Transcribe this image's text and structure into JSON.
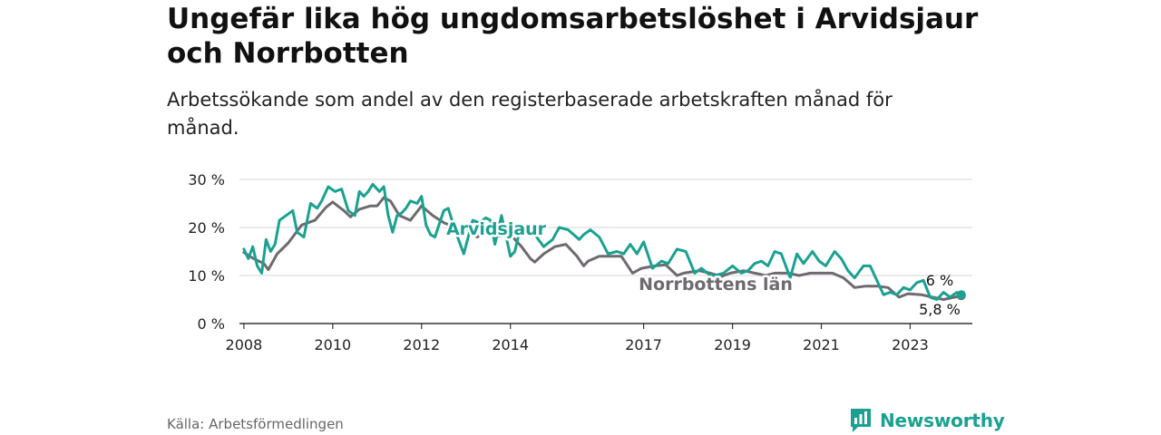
{
  "title": "Ungefär lika hög ungdomsarbetslöshet i Arvidsjaur och Norrbotten",
  "subtitle": "Arbetssökande som andel av den registerbaserade arbetskraften månad för månad.",
  "source": "Källa: Arbetsförmedlingen",
  "brand": {
    "name": "Newsworthy",
    "icon": "newsworthy-logo-icon"
  },
  "colors": {
    "arvidsjaur": "#1aa191",
    "norrbotten": "#6e6a6f",
    "grid": "#dddddd",
    "axis": "#333333"
  },
  "chart_data": {
    "type": "line",
    "x_unit": "year",
    "xlim": [
      2007.9,
      2024.4
    ],
    "ylim": [
      0,
      30
    ],
    "yticks": [
      0,
      10,
      20,
      30
    ],
    "ytick_labels": [
      "0 %",
      "10 %",
      "20 %",
      "30 %"
    ],
    "xticks": [
      2008,
      2010,
      2012,
      2014,
      2017,
      2019,
      2021,
      2023
    ],
    "xtick_labels": [
      "2008",
      "2010",
      "2012",
      "2014",
      "2017",
      "2019",
      "2021",
      "2023"
    ],
    "grid": true,
    "series": [
      {
        "name": "Norrbottens län",
        "label": "Norrbottens län",
        "end_label": "5,8 %",
        "x": [
          2008.0,
          2008.2,
          2008.45,
          2008.55,
          2008.75,
          2009.0,
          2009.3,
          2009.6,
          2009.85,
          2010.0,
          2010.25,
          2010.4,
          2010.6,
          2010.85,
          2011.0,
          2011.15,
          2011.3,
          2011.5,
          2011.75,
          2012.0,
          2012.25,
          2012.5,
          2012.75,
          2013.0,
          2013.25,
          2013.5,
          2013.75,
          2014.0,
          2014.25,
          2014.45,
          2014.55,
          2014.75,
          2015.0,
          2015.25,
          2015.5,
          2015.65,
          2015.75,
          2016.0,
          2016.25,
          2016.5,
          2016.75,
          2016.95,
          2017.25,
          2017.5,
          2017.75,
          2017.9,
          2018.25,
          2018.5,
          2018.75,
          2018.95,
          2019.25,
          2019.5,
          2019.75,
          2019.95,
          2020.25,
          2020.5,
          2020.75,
          2020.95,
          2021.25,
          2021.5,
          2021.75,
          2022.0,
          2022.25,
          2022.5,
          2022.75,
          2022.95,
          2023.25,
          2023.5,
          2023.75,
          2024.0,
          2024.15
        ],
        "y": [
          14.8,
          13.6,
          12.5,
          11.2,
          14.5,
          16.8,
          20.5,
          21.5,
          24.2,
          25.3,
          23.5,
          22.2,
          23.8,
          24.5,
          24.5,
          26.2,
          25.5,
          22.5,
          21.5,
          24.5,
          22.5,
          21.0,
          20.0,
          20.0,
          18.0,
          19.5,
          18.2,
          18.5,
          16.0,
          13.5,
          12.8,
          14.5,
          16.0,
          16.5,
          14.0,
          12.0,
          13.0,
          14.0,
          14.0,
          14.0,
          10.5,
          11.5,
          12.0,
          12.2,
          10.0,
          10.5,
          11.0,
          10.5,
          9.8,
          10.5,
          11.0,
          10.5,
          10.0,
          10.5,
          10.5,
          10.0,
          10.5,
          10.5,
          10.5,
          9.5,
          7.5,
          7.8,
          7.8,
          7.5,
          5.5,
          6.2,
          6.0,
          5.5,
          5.0,
          5.5,
          5.8
        ]
      },
      {
        "name": "Arvidsjaur",
        "label": "Arvidsjaur",
        "end_label": "6 %",
        "x": [
          2008.0,
          2008.1,
          2008.2,
          2008.3,
          2008.4,
          2008.5,
          2008.6,
          2008.7,
          2008.8,
          2008.95,
          2009.1,
          2009.2,
          2009.35,
          2009.5,
          2009.65,
          2009.75,
          2009.9,
          2010.05,
          2010.2,
          2010.35,
          2010.5,
          2010.6,
          2010.7,
          2010.8,
          2010.9,
          2011.05,
          2011.15,
          2011.25,
          2011.35,
          2011.45,
          2011.55,
          2011.65,
          2011.75,
          2011.9,
          2012.0,
          2012.1,
          2012.2,
          2012.3,
          2012.5,
          2012.6,
          2012.75,
          2012.95,
          2013.15,
          2013.3,
          2013.45,
          2013.55,
          2013.65,
          2013.8,
          2014.0,
          2014.1,
          2014.2,
          2014.4,
          2014.55,
          2014.75,
          2014.95,
          2015.1,
          2015.3,
          2015.55,
          2015.65,
          2015.8,
          2016.0,
          2016.2,
          2016.4,
          2016.55,
          2016.7,
          2016.85,
          2017.0,
          2017.2,
          2017.4,
          2017.55,
          2017.75,
          2017.95,
          2018.15,
          2018.3,
          2018.5,
          2018.6,
          2018.8,
          2019.0,
          2019.2,
          2019.35,
          2019.5,
          2019.65,
          2019.8,
          2019.95,
          2020.1,
          2020.3,
          2020.45,
          2020.6,
          2020.8,
          2020.95,
          2021.1,
          2021.3,
          2021.45,
          2021.6,
          2021.75,
          2021.95,
          2022.1,
          2022.25,
          2022.4,
          2022.55,
          2022.7,
          2022.85,
          2023.0,
          2023.15,
          2023.3,
          2023.45,
          2023.6,
          2023.75,
          2023.9,
          2024.05,
          2024.15
        ],
        "y": [
          15.5,
          13.5,
          16.0,
          12.0,
          10.5,
          17.5,
          15.0,
          16.5,
          21.5,
          22.5,
          23.5,
          19.0,
          18.0,
          25.0,
          24.0,
          25.5,
          28.5,
          27.5,
          28.0,
          23.5,
          22.5,
          27.5,
          26.5,
          27.5,
          29.0,
          27.5,
          28.5,
          22.5,
          19.0,
          22.5,
          23.0,
          24.0,
          25.5,
          25.0,
          26.5,
          20.5,
          18.5,
          18.0,
          23.5,
          24.0,
          19.5,
          14.5,
          21.5,
          21.0,
          22.0,
          21.5,
          16.5,
          22.5,
          14.0,
          15.0,
          19.0,
          19.5,
          18.5,
          16.0,
          17.5,
          20.0,
          19.5,
          17.5,
          18.5,
          19.5,
          18.0,
          14.5,
          15.0,
          14.5,
          16.5,
          14.5,
          17.0,
          11.5,
          13.0,
          12.5,
          15.5,
          15.0,
          10.5,
          11.5,
          10.0,
          10.0,
          10.5,
          12.0,
          10.5,
          11.0,
          12.5,
          13.0,
          12.0,
          15.0,
          14.5,
          9.5,
          14.5,
          12.5,
          15.0,
          13.0,
          12.0,
          15.0,
          13.5,
          11.0,
          9.5,
          12.0,
          12.0,
          9.0,
          6.0,
          6.5,
          6.0,
          7.5,
          7.0,
          8.5,
          9.0,
          5.5,
          5.0,
          6.5,
          5.5,
          6.5,
          6.0
        ]
      }
    ]
  }
}
